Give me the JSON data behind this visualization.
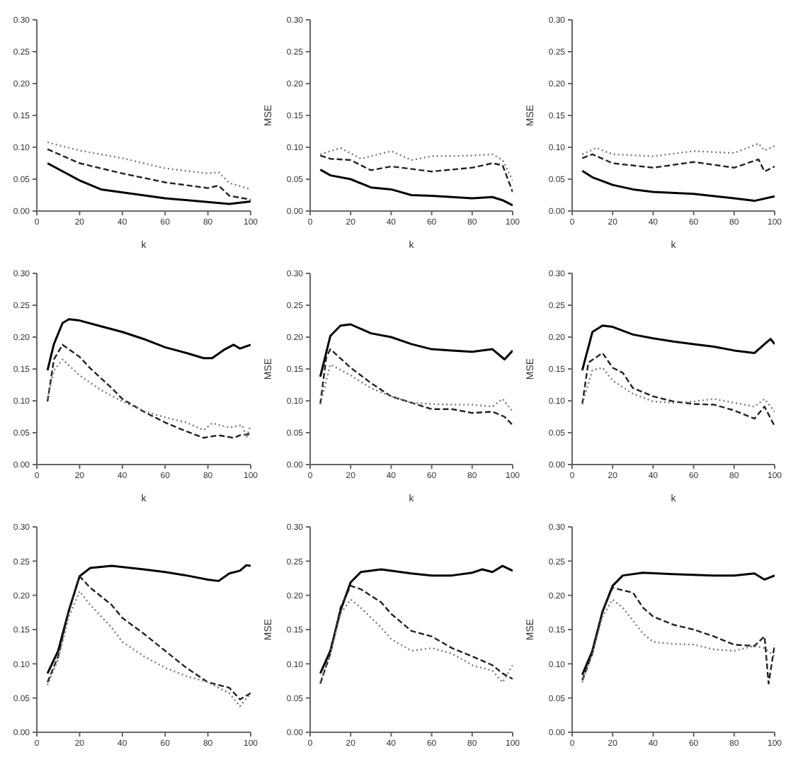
{
  "chart_data": [
    {
      "type": "line",
      "xlabel": "k",
      "xlim": [
        0,
        100
      ],
      "xticks": [
        0,
        20,
        40,
        60,
        80,
        100
      ],
      "ylim": [
        0,
        0.3
      ],
      "yticks": [
        {
          "value": 0,
          "label": "0.00"
        },
        {
          "value": 0.05,
          "label": "0.05"
        },
        {
          "value": 0.1,
          "label": "0.10"
        },
        {
          "value": 0.15,
          "label": "0.15"
        },
        {
          "value": 0.2,
          "label": "0.20"
        },
        {
          "value": 0.25,
          "label": "0.25"
        },
        {
          "value": 0.3,
          "label": "0.30"
        }
      ],
      "grid": false,
      "legend": false,
      "marker": "none",
      "series": [
        {
          "color": "#000000",
          "line_style": "solid",
          "x": [
            5,
            20,
            30,
            60,
            90,
            100
          ],
          "values": [
            0.075,
            0.048,
            0.034,
            0.02,
            0.011,
            0.015
          ]
        },
        {
          "color": "#222222",
          "line_style": "dashed",
          "x": [
            5,
            20,
            40,
            60,
            80,
            85,
            90,
            100
          ],
          "values": [
            0.097,
            0.075,
            0.059,
            0.045,
            0.036,
            0.04,
            0.024,
            0.018
          ]
        },
        {
          "color": "#777777",
          "line_style": "dotted",
          "x": [
            5,
            20,
            40,
            60,
            80,
            85,
            90,
            100
          ],
          "values": [
            0.108,
            0.095,
            0.083,
            0.067,
            0.059,
            0.061,
            0.044,
            0.034
          ]
        }
      ]
    },
    {
      "type": "line",
      "xlabel": "k",
      "ylabel": "MSE",
      "xlim": [
        0,
        100
      ],
      "xticks": [
        0,
        20,
        40,
        60,
        80,
        100
      ],
      "ylim": [
        0,
        0.3
      ],
      "yticks": [
        {
          "value": 0,
          "label": "0.00"
        },
        {
          "value": 0.05,
          "label": "0.05"
        },
        {
          "value": 0.1,
          "label": "0.10"
        },
        {
          "value": 0.15,
          "label": "0.15"
        },
        {
          "value": 0.2,
          "label": "0.20"
        },
        {
          "value": 0.25,
          "label": "0.25"
        },
        {
          "value": 0.3,
          "label": "0.30"
        }
      ],
      "grid": false,
      "legend": false,
      "marker": "none",
      "series": [
        {
          "color": "#000000",
          "line_style": "solid",
          "x": [
            5,
            10,
            20,
            30,
            40,
            50,
            60,
            80,
            90,
            95,
            100
          ],
          "values": [
            0.065,
            0.056,
            0.05,
            0.037,
            0.034,
            0.025,
            0.024,
            0.02,
            0.022,
            0.017,
            0.009
          ]
        },
        {
          "color": "#222222",
          "line_style": "dashed",
          "x": [
            5,
            10,
            20,
            30,
            40,
            60,
            80,
            90,
            95,
            100
          ],
          "values": [
            0.087,
            0.082,
            0.08,
            0.064,
            0.07,
            0.062,
            0.068,
            0.075,
            0.072,
            0.03
          ]
        },
        {
          "color": "#777777",
          "line_style": "dotted",
          "x": [
            5,
            15,
            25,
            40,
            50,
            60,
            80,
            90,
            95,
            100
          ],
          "values": [
            0.089,
            0.099,
            0.082,
            0.094,
            0.08,
            0.086,
            0.087,
            0.089,
            0.08,
            0.048
          ]
        }
      ]
    },
    {
      "type": "line",
      "xlabel": "k",
      "ylabel": "MSE",
      "xlim": [
        0,
        100
      ],
      "xticks": [
        0,
        20,
        40,
        60,
        80,
        100
      ],
      "ylim": [
        0,
        0.3
      ],
      "yticks": [
        {
          "value": 0,
          "label": "0.00"
        },
        {
          "value": 0.05,
          "label": "0.05"
        },
        {
          "value": 0.1,
          "label": "0.10"
        },
        {
          "value": 0.15,
          "label": "0.15"
        },
        {
          "value": 0.2,
          "label": "0.20"
        },
        {
          "value": 0.25,
          "label": "0.25"
        },
        {
          "value": 0.3,
          "label": "0.30"
        }
      ],
      "grid": false,
      "legend": false,
      "marker": "none",
      "series": [
        {
          "color": "#000000",
          "line_style": "solid",
          "x": [
            5,
            10,
            20,
            30,
            40,
            60,
            80,
            90,
            100
          ],
          "values": [
            0.063,
            0.053,
            0.041,
            0.034,
            0.03,
            0.027,
            0.02,
            0.016,
            0.023
          ]
        },
        {
          "color": "#222222",
          "line_style": "dashed",
          "x": [
            5,
            10,
            20,
            40,
            60,
            80,
            92,
            95,
            100
          ],
          "values": [
            0.083,
            0.089,
            0.075,
            0.068,
            0.077,
            0.068,
            0.081,
            0.062,
            0.07
          ]
        },
        {
          "color": "#777777",
          "line_style": "dotted",
          "x": [
            5,
            12,
            20,
            40,
            60,
            80,
            92,
            95,
            100
          ],
          "values": [
            0.089,
            0.099,
            0.089,
            0.086,
            0.094,
            0.091,
            0.106,
            0.095,
            0.102
          ]
        }
      ]
    },
    {
      "type": "line",
      "xlabel": "k",
      "xlim": [
        0,
        100
      ],
      "xticks": [
        0,
        20,
        40,
        60,
        80,
        100
      ],
      "ylim": [
        0,
        0.3
      ],
      "yticks": [
        {
          "value": 0,
          "label": "0.00"
        },
        {
          "value": 0.05,
          "label": "0.05"
        },
        {
          "value": 0.1,
          "label": "0.10"
        },
        {
          "value": 0.15,
          "label": "0.15"
        },
        {
          "value": 0.2,
          "label": "0.20"
        },
        {
          "value": 0.25,
          "label": "0.25"
        },
        {
          "value": 0.3,
          "label": "0.30"
        }
      ],
      "grid": false,
      "legend": false,
      "marker": "none",
      "series": [
        {
          "color": "#000000",
          "line_style": "solid",
          "x": [
            5,
            8,
            12,
            15,
            20,
            30,
            40,
            50,
            60,
            70,
            78,
            82,
            88,
            92,
            95,
            100
          ],
          "values": [
            0.148,
            0.189,
            0.222,
            0.228,
            0.226,
            0.217,
            0.208,
            0.197,
            0.184,
            0.175,
            0.167,
            0.167,
            0.181,
            0.188,
            0.182,
            0.188
          ]
        },
        {
          "color": "#222222",
          "line_style": "dashed",
          "x": [
            5,
            8,
            12,
            20,
            25,
            35,
            40,
            50,
            60,
            70,
            78,
            85,
            92,
            95,
            100
          ],
          "values": [
            0.099,
            0.165,
            0.188,
            0.169,
            0.151,
            0.12,
            0.103,
            0.083,
            0.066,
            0.052,
            0.042,
            0.046,
            0.042,
            0.046,
            0.048
          ]
        },
        {
          "color": "#777777",
          "line_style": "dotted",
          "x": [
            5,
            8,
            12,
            20,
            30,
            40,
            50,
            60,
            70,
            78,
            82,
            90,
            96,
            98,
            100
          ],
          "values": [
            0.103,
            0.148,
            0.165,
            0.14,
            0.117,
            0.099,
            0.084,
            0.074,
            0.066,
            0.054,
            0.065,
            0.058,
            0.062,
            0.042,
            0.062
          ]
        }
      ]
    },
    {
      "type": "line",
      "xlabel": "k",
      "ylabel": "MSE",
      "xlim": [
        0,
        100
      ],
      "xticks": [
        0,
        20,
        40,
        60,
        80,
        100
      ],
      "ylim": [
        0,
        0.3
      ],
      "yticks": [
        {
          "value": 0,
          "label": "0.00"
        },
        {
          "value": 0.05,
          "label": "0.05"
        },
        {
          "value": 0.1,
          "label": "0.10"
        },
        {
          "value": 0.15,
          "label": "0.15"
        },
        {
          "value": 0.2,
          "label": "0.20"
        },
        {
          "value": 0.25,
          "label": "0.25"
        },
        {
          "value": 0.3,
          "label": "0.30"
        }
      ],
      "grid": false,
      "legend": false,
      "marker": "none",
      "series": [
        {
          "color": "#000000",
          "line_style": "solid",
          "x": [
            5,
            10,
            15,
            20,
            30,
            40,
            50,
            60,
            70,
            80,
            90,
            96,
            100
          ],
          "values": [
            0.138,
            0.202,
            0.218,
            0.22,
            0.206,
            0.2,
            0.189,
            0.181,
            0.179,
            0.177,
            0.181,
            0.165,
            0.179
          ]
        },
        {
          "color": "#222222",
          "line_style": "dashed",
          "x": [
            5,
            8,
            10,
            20,
            30,
            40,
            50,
            60,
            70,
            80,
            90,
            96,
            100
          ],
          "values": [
            0.095,
            0.169,
            0.181,
            0.152,
            0.128,
            0.107,
            0.097,
            0.087,
            0.087,
            0.081,
            0.083,
            0.075,
            0.062
          ]
        },
        {
          "color": "#777777",
          "line_style": "dotted",
          "x": [
            5,
            10,
            20,
            30,
            40,
            50,
            60,
            70,
            80,
            90,
            95,
            100
          ],
          "values": [
            0.095,
            0.157,
            0.14,
            0.12,
            0.107,
            0.097,
            0.095,
            0.094,
            0.094,
            0.091,
            0.103,
            0.083
          ]
        }
      ]
    },
    {
      "type": "line",
      "xlabel": "k",
      "ylabel": "MSE",
      "xlim": [
        0,
        100
      ],
      "xticks": [
        0,
        20,
        40,
        60,
        80,
        100
      ],
      "ylim": [
        0,
        0.3
      ],
      "yticks": [
        {
          "value": 0,
          "label": "0.00"
        },
        {
          "value": 0.05,
          "label": "0.05"
        },
        {
          "value": 0.1,
          "label": "0.10"
        },
        {
          "value": 0.15,
          "label": "0.15"
        },
        {
          "value": 0.2,
          "label": "0.20"
        },
        {
          "value": 0.25,
          "label": "0.25"
        },
        {
          "value": 0.3,
          "label": "0.30"
        }
      ],
      "grid": false,
      "legend": false,
      "marker": "none",
      "series": [
        {
          "color": "#000000",
          "line_style": "solid",
          "x": [
            5,
            10,
            15,
            20,
            30,
            40,
            50,
            60,
            70,
            80,
            90,
            95,
            98,
            100
          ],
          "values": [
            0.148,
            0.208,
            0.218,
            0.216,
            0.204,
            0.198,
            0.193,
            0.189,
            0.185,
            0.179,
            0.175,
            0.189,
            0.197,
            0.189
          ]
        },
        {
          "color": "#222222",
          "line_style": "dashed",
          "x": [
            5,
            8,
            15,
            20,
            25,
            30,
            40,
            50,
            60,
            70,
            80,
            90,
            95,
            100
          ],
          "values": [
            0.095,
            0.16,
            0.175,
            0.152,
            0.144,
            0.12,
            0.107,
            0.099,
            0.095,
            0.094,
            0.085,
            0.072,
            0.091,
            0.06
          ]
        },
        {
          "color": "#777777",
          "line_style": "dotted",
          "x": [
            5,
            10,
            15,
            20,
            30,
            40,
            50,
            60,
            70,
            80,
            90,
            95,
            100
          ],
          "values": [
            0.095,
            0.148,
            0.152,
            0.132,
            0.111,
            0.099,
            0.097,
            0.099,
            0.103,
            0.097,
            0.091,
            0.103,
            0.083
          ]
        }
      ]
    },
    {
      "type": "line",
      "xlim": [
        0,
        100
      ],
      "xticks": [
        0,
        20,
        40,
        60,
        80,
        100
      ],
      "ylim": [
        0,
        0.3
      ],
      "yticks": [
        {
          "value": 0,
          "label": "0.00"
        },
        {
          "value": 0.05,
          "label": "0.05"
        },
        {
          "value": 0.1,
          "label": "0.10"
        },
        {
          "value": 0.15,
          "label": "0.15"
        },
        {
          "value": 0.2,
          "label": "0.20"
        },
        {
          "value": 0.25,
          "label": "0.25"
        },
        {
          "value": 0.3,
          "label": "0.30"
        }
      ],
      "grid": false,
      "legend": false,
      "marker": "none",
      "series": [
        {
          "color": "#000000",
          "line_style": "solid",
          "x": [
            5,
            10,
            15,
            20,
            25,
            35,
            50,
            60,
            70,
            80,
            85,
            90,
            95,
            98,
            100
          ],
          "values": [
            0.086,
            0.119,
            0.178,
            0.228,
            0.24,
            0.243,
            0.238,
            0.234,
            0.229,
            0.223,
            0.221,
            0.232,
            0.236,
            0.244,
            0.243
          ]
        },
        {
          "color": "#222222",
          "line_style": "dashed",
          "x": [
            5,
            10,
            15,
            20,
            25,
            35,
            40,
            50,
            60,
            70,
            80,
            90,
            95,
            100
          ],
          "values": [
            0.073,
            0.111,
            0.178,
            0.228,
            0.211,
            0.186,
            0.167,
            0.144,
            0.119,
            0.094,
            0.073,
            0.065,
            0.048,
            0.057
          ]
        },
        {
          "color": "#777777",
          "line_style": "dotted",
          "x": [
            5,
            10,
            15,
            20,
            25,
            35,
            40,
            50,
            60,
            70,
            80,
            90,
            95,
            100
          ],
          "values": [
            0.069,
            0.107,
            0.169,
            0.206,
            0.186,
            0.153,
            0.132,
            0.111,
            0.094,
            0.082,
            0.073,
            0.057,
            0.038,
            0.057
          ]
        }
      ]
    },
    {
      "type": "line",
      "ylabel": "MSE",
      "xlim": [
        0,
        100
      ],
      "xticks": [
        0,
        20,
        40,
        60,
        80,
        100
      ],
      "ylim": [
        0,
        0.3
      ],
      "yticks": [
        {
          "value": 0,
          "label": "0.00"
        },
        {
          "value": 0.05,
          "label": "0.05"
        },
        {
          "value": 0.1,
          "label": "0.10"
        },
        {
          "value": 0.15,
          "label": "0.15"
        },
        {
          "value": 0.2,
          "label": "0.20"
        },
        {
          "value": 0.25,
          "label": "0.25"
        },
        {
          "value": 0.3,
          "label": "0.30"
        }
      ],
      "grid": false,
      "legend": false,
      "marker": "none",
      "series": [
        {
          "color": "#000000",
          "line_style": "solid",
          "x": [
            5,
            10,
            15,
            20,
            25,
            35,
            50,
            60,
            70,
            80,
            85,
            90,
            95,
            100
          ],
          "values": [
            0.086,
            0.119,
            0.178,
            0.219,
            0.234,
            0.238,
            0.232,
            0.229,
            0.229,
            0.233,
            0.238,
            0.234,
            0.243,
            0.236
          ]
        },
        {
          "color": "#222222",
          "line_style": "dashed",
          "x": [
            5,
            10,
            15,
            20,
            25,
            35,
            40,
            50,
            60,
            70,
            80,
            90,
            95,
            100
          ],
          "values": [
            0.071,
            0.115,
            0.182,
            0.214,
            0.209,
            0.19,
            0.173,
            0.148,
            0.14,
            0.123,
            0.111,
            0.098,
            0.086,
            0.078
          ]
        },
        {
          "color": "#777777",
          "line_style": "dotted",
          "x": [
            5,
            10,
            15,
            20,
            25,
            35,
            40,
            50,
            60,
            70,
            80,
            90,
            95,
            100
          ],
          "values": [
            0.073,
            0.115,
            0.173,
            0.194,
            0.182,
            0.153,
            0.136,
            0.119,
            0.123,
            0.115,
            0.098,
            0.09,
            0.073,
            0.098
          ]
        }
      ]
    },
    {
      "type": "line",
      "ylabel": "MSE",
      "xlim": [
        0,
        100
      ],
      "xticks": [
        0,
        20,
        40,
        60,
        80,
        100
      ],
      "ylim": [
        0,
        0.3
      ],
      "yticks": [
        {
          "value": 0,
          "label": "0.00"
        },
        {
          "value": 0.05,
          "label": "0.05"
        },
        {
          "value": 0.1,
          "label": "0.10"
        },
        {
          "value": 0.15,
          "label": "0.15"
        },
        {
          "value": 0.2,
          "label": "0.20"
        },
        {
          "value": 0.25,
          "label": "0.25"
        },
        {
          "value": 0.3,
          "label": "0.30"
        }
      ],
      "grid": false,
      "legend": false,
      "marker": "none",
      "series": [
        {
          "color": "#000000",
          "line_style": "solid",
          "x": [
            5,
            10,
            15,
            20,
            25,
            35,
            50,
            60,
            70,
            80,
            90,
            95,
            100
          ],
          "values": [
            0.084,
            0.119,
            0.176,
            0.214,
            0.229,
            0.233,
            0.231,
            0.23,
            0.229,
            0.229,
            0.232,
            0.223,
            0.229
          ]
        },
        {
          "color": "#222222",
          "line_style": "dashed",
          "x": [
            5,
            10,
            15,
            20,
            30,
            35,
            40,
            50,
            60,
            70,
            80,
            90,
            95,
            97,
            100
          ],
          "values": [
            0.076,
            0.115,
            0.178,
            0.211,
            0.204,
            0.182,
            0.169,
            0.157,
            0.15,
            0.14,
            0.128,
            0.126,
            0.14,
            0.071,
            0.128
          ]
        },
        {
          "color": "#777777",
          "line_style": "dotted",
          "x": [
            5,
            10,
            15,
            20,
            25,
            35,
            40,
            50,
            60,
            70,
            80,
            90,
            95,
            100
          ],
          "values": [
            0.073,
            0.115,
            0.169,
            0.194,
            0.182,
            0.144,
            0.132,
            0.129,
            0.128,
            0.121,
            0.119,
            0.126,
            0.123,
            0.111
          ]
        }
      ]
    }
  ]
}
